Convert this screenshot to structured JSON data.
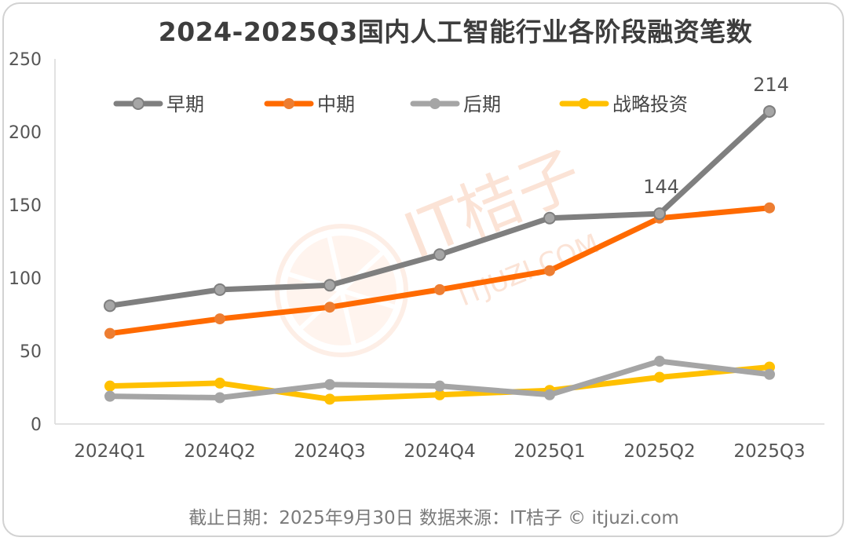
{
  "title": "2024-2025Q3国内人工智能行业各阶段融资笔数",
  "footer": "截止日期：2025年9月30日    数据来源：IT桔子 © itjuzi.com",
  "watermark": {
    "brand": "IT桔子",
    "url": "ITJUZI.COM"
  },
  "chart_data": {
    "type": "line",
    "title": "2024-2025Q3国内人工智能行业各阶段融资笔数",
    "xlabel": "",
    "ylabel": "",
    "categories": [
      "2024Q1",
      "2024Q2",
      "2024Q3",
      "2024Q4",
      "2025Q1",
      "2025Q2",
      "2025Q3"
    ],
    "ylim": [
      0,
      250
    ],
    "yticks": [
      0,
      50,
      100,
      150,
      200,
      250
    ],
    "grid": false,
    "legend_position": "top",
    "series": [
      {
        "name": "早期",
        "color": "#7f7f7f",
        "marker": "#a6a6a6",
        "values": [
          81,
          92,
          95,
          116,
          141,
          144,
          214
        ]
      },
      {
        "name": "中期",
        "color": "#ff6a00",
        "marker": "#ed7d31",
        "values": [
          62,
          72,
          80,
          92,
          105,
          141,
          148
        ]
      },
      {
        "name": "后期",
        "color": "#a5a5a5",
        "marker": "#a5a5a5",
        "values": [
          19,
          18,
          27,
          26,
          20,
          43,
          34
        ]
      },
      {
        "name": "战略投资",
        "color": "#ffc000",
        "marker": "#ffc000",
        "values": [
          26,
          28,
          17,
          20,
          23,
          32,
          39
        ]
      }
    ],
    "annotations": [
      {
        "series": "早期",
        "category": "2025Q2",
        "text": "144"
      },
      {
        "series": "早期",
        "category": "2025Q3",
        "text": "214"
      }
    ]
  }
}
